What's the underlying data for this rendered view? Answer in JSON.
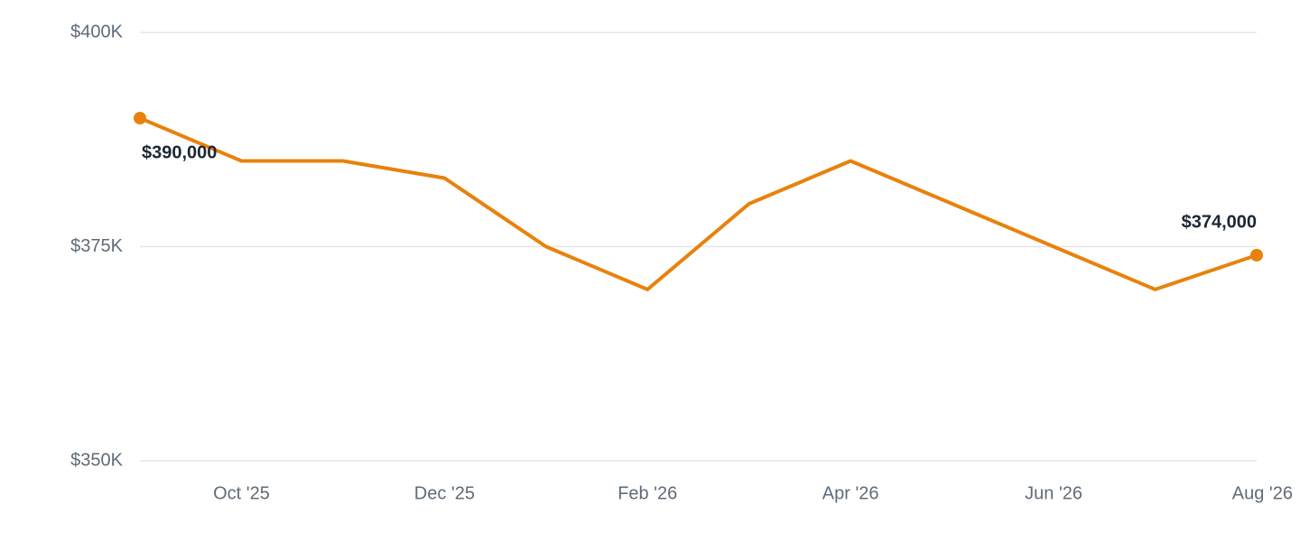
{
  "chart_data": {
    "type": "line",
    "categories": [
      null,
      "Oct '25",
      null,
      "Dec '25",
      null,
      "Feb '26",
      null,
      "Apr '26",
      null,
      "Jun '26",
      null,
      "Aug '26"
    ],
    "series": [
      {
        "color": "#e8820c",
        "values": [
          390000,
          385000,
          385000,
          383000,
          375000,
          370000,
          380000,
          385000,
          380000,
          375000,
          370000,
          374000
        ],
        "value_labels": [
          "$390,000",
          null,
          null,
          null,
          null,
          null,
          null,
          null,
          null,
          null,
          null,
          "$374,000"
        ]
      }
    ],
    "ylim": [
      350000,
      400000
    ],
    "yticks": [
      {
        "value": 350000,
        "label": "$350K"
      },
      {
        "value": 375000,
        "label": "$375K"
      },
      {
        "value": 400000,
        "label": "$400K"
      }
    ],
    "grid": true
  }
}
